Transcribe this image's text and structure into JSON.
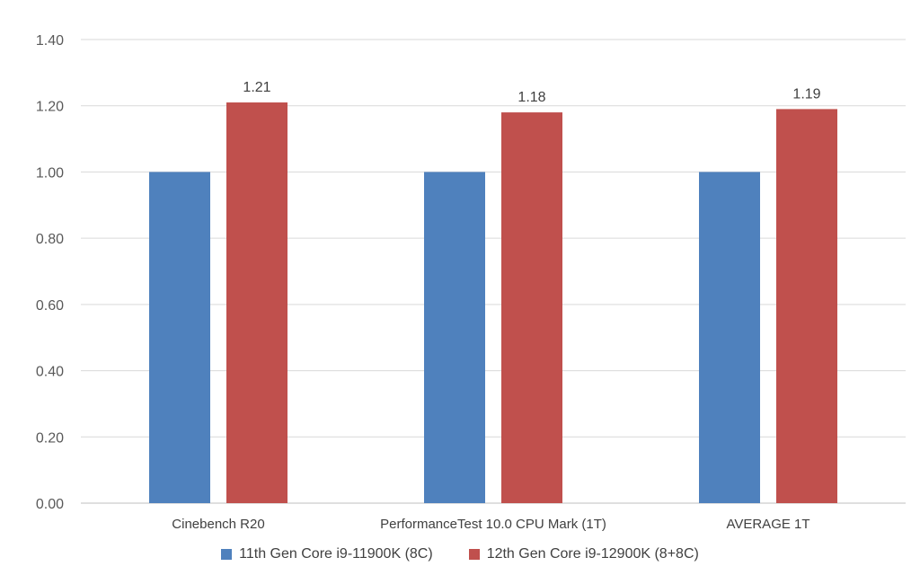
{
  "chart_data": {
    "type": "bar",
    "categories": [
      "Cinebench R20",
      "PerformanceTest 10.0 CPU Mark (1T)",
      "AVERAGE 1T"
    ],
    "series": [
      {
        "name": "11th Gen Core i9-11900K (8C)",
        "values": [
          1.0,
          1.0,
          1.0
        ],
        "color": "#4F81BD",
        "data_labels": [
          "",
          "",
          ""
        ]
      },
      {
        "name": "12th Gen Core i9-12900K (8+8C)",
        "values": [
          1.21,
          1.18,
          1.19
        ],
        "color": "#C0504D",
        "data_labels": [
          "1.21",
          "1.18",
          "1.19"
        ]
      }
    ],
    "y_ticks": [
      "0.00",
      "0.20",
      "0.40",
      "0.60",
      "0.80",
      "1.00",
      "1.20",
      "1.40"
    ],
    "ylim": [
      0,
      1.4
    ],
    "grid": true,
    "legend_position": "bottom",
    "title": "",
    "xlabel": "",
    "ylabel": ""
  }
}
